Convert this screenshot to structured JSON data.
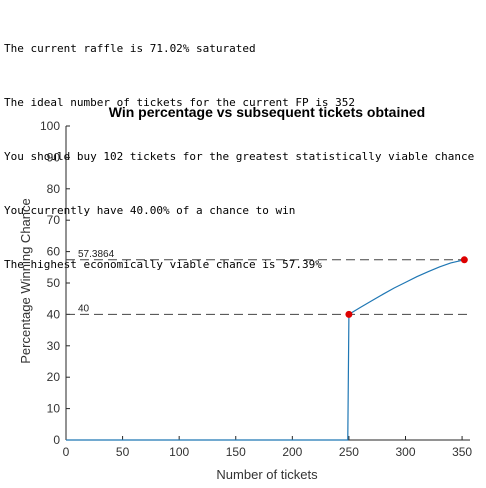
{
  "console": {
    "lines": [
      "The current raffle is 71.02% saturated",
      "The ideal number of tickets for the current FP is 352",
      "You should buy 102 tickets for the greatest statistically viable chance",
      "You currently have 40.00% of a chance to win",
      "The highest economically viable chance is 57.39%"
    ]
  },
  "chart_data": {
    "type": "line",
    "title": "Win percentage vs subsequent tickets obtained",
    "xlabel": "Number of tickets",
    "ylabel": "Percentage Winning Chance",
    "xlim": [
      0,
      357
    ],
    "ylim": [
      0,
      100
    ],
    "xticks": [
      0,
      50,
      100,
      150,
      200,
      250,
      300,
      350
    ],
    "yticks": [
      0,
      10,
      20,
      30,
      40,
      50,
      60,
      70,
      80,
      90,
      100
    ],
    "grid": false,
    "line_color": "#1f77b4",
    "marker_color": "#dd0000",
    "series": [
      {
        "x": [
          0,
          249,
          250,
          260,
          270,
          280,
          290,
          300,
          310,
          320,
          330,
          340,
          352
        ],
        "y": [
          0,
          0,
          40,
          42.2,
          44.3,
          46.4,
          48.4,
          50.2,
          52,
          53.6,
          55.1,
          56.4,
          57.3864
        ]
      }
    ],
    "markers": [
      {
        "x": 250,
        "y": 40
      },
      {
        "x": 352,
        "y": 57.3864
      }
    ],
    "reference_lines": [
      {
        "y": 57.3864,
        "label": "57.3864"
      },
      {
        "y": 40,
        "label": "40"
      }
    ]
  }
}
